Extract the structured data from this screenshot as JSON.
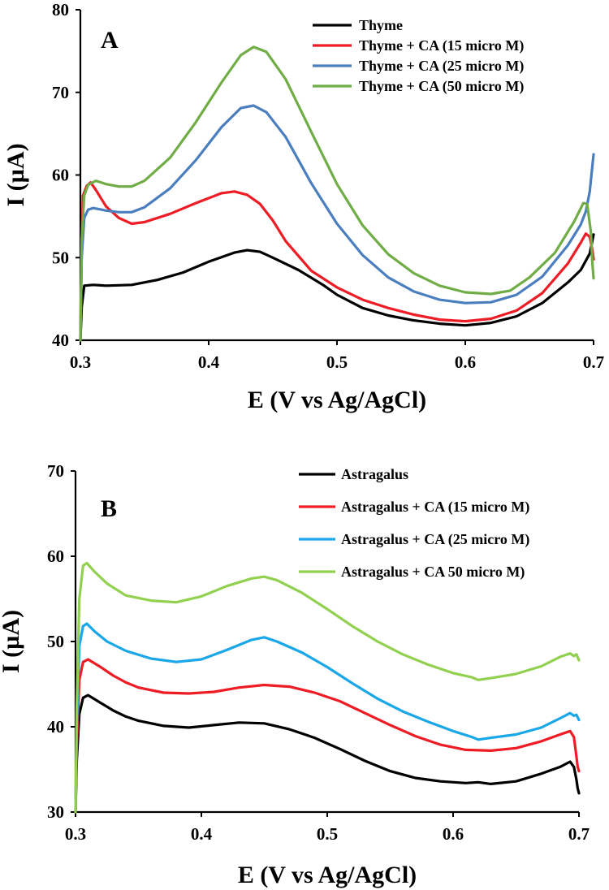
{
  "colors": {
    "black": "#000000",
    "red": "#ee1c25",
    "blueA": "#4a7ebf",
    "greenA": "#71ad47",
    "blueB": "#1aa7e8",
    "greenB": "#92d050"
  },
  "chart_data": [
    {
      "type": "line",
      "panel_label": "A",
      "xlabel": "E (V vs Ag/AgCl)",
      "ylabel": "I (µA)",
      "xlim": [
        0.3,
        0.7
      ],
      "ylim": [
        40,
        80
      ],
      "xticks": [
        "0.3",
        "0.4",
        "0.5",
        "0.6",
        "0.7"
      ],
      "yticks": [
        "40",
        "50",
        "60",
        "70",
        "80"
      ],
      "legend_position": "top-right",
      "series": [
        {
          "name": "Thyme",
          "color": "#000000",
          "points": [
            [
              0.3,
              40.0
            ],
            [
              0.301,
              44.0
            ],
            [
              0.303,
              46.6
            ],
            [
              0.31,
              46.7
            ],
            [
              0.32,
              46.6
            ],
            [
              0.34,
              46.7
            ],
            [
              0.36,
              47.3
            ],
            [
              0.38,
              48.2
            ],
            [
              0.4,
              49.5
            ],
            [
              0.42,
              50.6
            ],
            [
              0.43,
              50.9
            ],
            [
              0.44,
              50.7
            ],
            [
              0.45,
              50.0
            ],
            [
              0.47,
              48.5
            ],
            [
              0.49,
              46.6
            ],
            [
              0.5,
              45.5
            ],
            [
              0.52,
              43.9
            ],
            [
              0.54,
              43.0
            ],
            [
              0.56,
              42.4
            ],
            [
              0.58,
              42.0
            ],
            [
              0.6,
              41.8
            ],
            [
              0.62,
              42.1
            ],
            [
              0.64,
              42.9
            ],
            [
              0.66,
              44.5
            ],
            [
              0.68,
              47.0
            ],
            [
              0.69,
              48.5
            ],
            [
              0.697,
              50.5
            ],
            [
              0.699,
              52.0
            ],
            [
              0.7,
              52.8
            ]
          ]
        },
        {
          "name": "Thyme + CA (15 micro M)",
          "color": "#ee1c25",
          "points": [
            [
              0.3,
              40.0
            ],
            [
              0.301,
              51.0
            ],
            [
              0.302,
              57.5
            ],
            [
              0.305,
              58.7
            ],
            [
              0.308,
              59.1
            ],
            [
              0.312,
              58.2
            ],
            [
              0.32,
              56.2
            ],
            [
              0.33,
              54.8
            ],
            [
              0.34,
              54.1
            ],
            [
              0.35,
              54.3
            ],
            [
              0.37,
              55.3
            ],
            [
              0.39,
              56.6
            ],
            [
              0.41,
              57.8
            ],
            [
              0.42,
              58.0
            ],
            [
              0.43,
              57.6
            ],
            [
              0.44,
              56.5
            ],
            [
              0.45,
              54.5
            ],
            [
              0.46,
              52.0
            ],
            [
              0.48,
              48.4
            ],
            [
              0.5,
              46.4
            ],
            [
              0.52,
              44.9
            ],
            [
              0.54,
              43.9
            ],
            [
              0.56,
              43.1
            ],
            [
              0.58,
              42.5
            ],
            [
              0.6,
              42.3
            ],
            [
              0.62,
              42.6
            ],
            [
              0.64,
              43.6
            ],
            [
              0.66,
              45.7
            ],
            [
              0.68,
              49.3
            ],
            [
              0.69,
              51.8
            ],
            [
              0.694,
              52.9
            ],
            [
              0.697,
              52.5
            ],
            [
              0.699,
              51.0
            ],
            [
              0.7,
              49.8
            ]
          ]
        },
        {
          "name": "Thyme + CA (25 micro M)",
          "color": "#4a7ebf",
          "points": [
            [
              0.3,
              40.0
            ],
            [
              0.301,
              50.0
            ],
            [
              0.303,
              54.8
            ],
            [
              0.306,
              55.8
            ],
            [
              0.31,
              56.0
            ],
            [
              0.32,
              55.7
            ],
            [
              0.33,
              55.5
            ],
            [
              0.34,
              55.5
            ],
            [
              0.35,
              56.1
            ],
            [
              0.37,
              58.4
            ],
            [
              0.39,
              61.8
            ],
            [
              0.41,
              65.8
            ],
            [
              0.425,
              68.1
            ],
            [
              0.435,
              68.4
            ],
            [
              0.445,
              67.6
            ],
            [
              0.46,
              64.6
            ],
            [
              0.48,
              59.0
            ],
            [
              0.5,
              54.1
            ],
            [
              0.52,
              50.3
            ],
            [
              0.54,
              47.6
            ],
            [
              0.56,
              45.9
            ],
            [
              0.58,
              44.9
            ],
            [
              0.6,
              44.5
            ],
            [
              0.62,
              44.6
            ],
            [
              0.64,
              45.5
            ],
            [
              0.66,
              47.7
            ],
            [
              0.68,
              51.5
            ],
            [
              0.69,
              54.0
            ],
            [
              0.694,
              55.6
            ],
            [
              0.697,
              58.0
            ],
            [
              0.699,
              61.0
            ],
            [
              0.7,
              62.5
            ]
          ]
        },
        {
          "name": "Thyme + CA (50 micro M)",
          "color": "#71ad47",
          "points": [
            [
              0.3,
              40.0
            ],
            [
              0.301,
              52.0
            ],
            [
              0.303,
              57.5
            ],
            [
              0.306,
              58.8
            ],
            [
              0.312,
              59.3
            ],
            [
              0.32,
              58.9
            ],
            [
              0.33,
              58.6
            ],
            [
              0.34,
              58.6
            ],
            [
              0.35,
              59.3
            ],
            [
              0.37,
              62.1
            ],
            [
              0.39,
              66.4
            ],
            [
              0.41,
              71.2
            ],
            [
              0.425,
              74.5
            ],
            [
              0.435,
              75.5
            ],
            [
              0.445,
              74.9
            ],
            [
              0.46,
              71.6
            ],
            [
              0.48,
              65.2
            ],
            [
              0.5,
              58.9
            ],
            [
              0.52,
              53.9
            ],
            [
              0.54,
              50.4
            ],
            [
              0.56,
              48.1
            ],
            [
              0.58,
              46.6
            ],
            [
              0.6,
              45.8
            ],
            [
              0.62,
              45.6
            ],
            [
              0.635,
              46.0
            ],
            [
              0.65,
              47.6
            ],
            [
              0.67,
              50.6
            ],
            [
              0.685,
              54.4
            ],
            [
              0.692,
              56.6
            ],
            [
              0.695,
              56.5
            ],
            [
              0.698,
              53.0
            ],
            [
              0.699,
              49.5
            ],
            [
              0.7,
              47.5
            ]
          ]
        }
      ]
    },
    {
      "type": "line",
      "panel_label": "B",
      "xlabel": "E (V vs Ag/AgCl)",
      "ylabel": "I (µA)",
      "xlim": [
        0.3,
        0.7
      ],
      "ylim": [
        30,
        70
      ],
      "xticks": [
        "0.3",
        "0.4",
        "0.5",
        "0.6",
        "0.7"
      ],
      "yticks": [
        "30",
        "40",
        "50",
        "60",
        "70"
      ],
      "legend_position": "top-right",
      "series": [
        {
          "name": "Astragalus",
          "color": "#000000",
          "points": [
            [
              0.3,
              30.0
            ],
            [
              0.301,
              36.0
            ],
            [
              0.303,
              41.5
            ],
            [
              0.306,
              43.4
            ],
            [
              0.31,
              43.7
            ],
            [
              0.32,
              42.8
            ],
            [
              0.33,
              41.9
            ],
            [
              0.34,
              41.2
            ],
            [
              0.35,
              40.7
            ],
            [
              0.37,
              40.1
            ],
            [
              0.39,
              39.9
            ],
            [
              0.41,
              40.2
            ],
            [
              0.43,
              40.5
            ],
            [
              0.45,
              40.4
            ],
            [
              0.47,
              39.7
            ],
            [
              0.49,
              38.7
            ],
            [
              0.51,
              37.4
            ],
            [
              0.53,
              36.0
            ],
            [
              0.55,
              34.8
            ],
            [
              0.57,
              34.0
            ],
            [
              0.59,
              33.6
            ],
            [
              0.61,
              33.4
            ],
            [
              0.62,
              33.5
            ],
            [
              0.63,
              33.3
            ],
            [
              0.65,
              33.6
            ],
            [
              0.67,
              34.5
            ],
            [
              0.685,
              35.3
            ],
            [
              0.693,
              35.9
            ],
            [
              0.696,
              35.3
            ],
            [
              0.698,
              33.8
            ],
            [
              0.699,
              32.8
            ],
            [
              0.7,
              32.2
            ]
          ]
        },
        {
          "name": "Astragalus + CA (15 micro M)",
          "color": "#ee1c25",
          "points": [
            [
              0.3,
              30.0
            ],
            [
              0.301,
              38.0
            ],
            [
              0.303,
              45.5
            ],
            [
              0.306,
              47.6
            ],
            [
              0.31,
              47.9
            ],
            [
              0.32,
              47.0
            ],
            [
              0.33,
              46.0
            ],
            [
              0.34,
              45.2
            ],
            [
              0.35,
              44.6
            ],
            [
              0.37,
              44.0
            ],
            [
              0.39,
              43.9
            ],
            [
              0.41,
              44.1
            ],
            [
              0.43,
              44.6
            ],
            [
              0.45,
              44.9
            ],
            [
              0.47,
              44.7
            ],
            [
              0.49,
              44.0
            ],
            [
              0.51,
              43.0
            ],
            [
              0.53,
              41.6
            ],
            [
              0.55,
              40.2
            ],
            [
              0.57,
              38.9
            ],
            [
              0.59,
              37.9
            ],
            [
              0.61,
              37.3
            ],
            [
              0.63,
              37.2
            ],
            [
              0.65,
              37.5
            ],
            [
              0.67,
              38.3
            ],
            [
              0.685,
              39.1
            ],
            [
              0.693,
              39.5
            ],
            [
              0.696,
              38.8
            ],
            [
              0.698,
              36.5
            ],
            [
              0.699,
              35.3
            ],
            [
              0.7,
              34.8
            ]
          ]
        },
        {
          "name": "Astragalus + CA (25 micro M)",
          "color": "#1aa7e8",
          "points": [
            [
              0.3,
              30.0
            ],
            [
              0.301,
              40.0
            ],
            [
              0.303,
              49.5
            ],
            [
              0.306,
              51.8
            ],
            [
              0.309,
              52.1
            ],
            [
              0.315,
              51.2
            ],
            [
              0.325,
              50.0
            ],
            [
              0.34,
              48.9
            ],
            [
              0.36,
              48.0
            ],
            [
              0.38,
              47.6
            ],
            [
              0.4,
              47.9
            ],
            [
              0.42,
              49.0
            ],
            [
              0.44,
              50.2
            ],
            [
              0.45,
              50.5
            ],
            [
              0.46,
              50.0
            ],
            [
              0.48,
              48.7
            ],
            [
              0.5,
              47.0
            ],
            [
              0.52,
              45.1
            ],
            [
              0.54,
              43.3
            ],
            [
              0.56,
              41.8
            ],
            [
              0.58,
              40.6
            ],
            [
              0.6,
              39.5
            ],
            [
              0.615,
              38.8
            ],
            [
              0.62,
              38.5
            ],
            [
              0.63,
              38.7
            ],
            [
              0.65,
              39.1
            ],
            [
              0.67,
              39.9
            ],
            [
              0.685,
              41.0
            ],
            [
              0.693,
              41.6
            ],
            [
              0.696,
              41.3
            ],
            [
              0.698,
              41.4
            ],
            [
              0.7,
              40.8
            ]
          ]
        },
        {
          "name": "Astragalus + CA 50 micro M)",
          "color": "#92d050",
          "points": [
            [
              0.3,
              30.0
            ],
            [
              0.301,
              42.0
            ],
            [
              0.303,
              55.0
            ],
            [
              0.306,
              58.9
            ],
            [
              0.309,
              59.2
            ],
            [
              0.315,
              58.2
            ],
            [
              0.325,
              56.8
            ],
            [
              0.34,
              55.4
            ],
            [
              0.36,
              54.8
            ],
            [
              0.38,
              54.6
            ],
            [
              0.4,
              55.3
            ],
            [
              0.42,
              56.5
            ],
            [
              0.44,
              57.4
            ],
            [
              0.45,
              57.6
            ],
            [
              0.46,
              57.2
            ],
            [
              0.48,
              55.7
            ],
            [
              0.5,
              53.8
            ],
            [
              0.52,
              51.8
            ],
            [
              0.54,
              50.0
            ],
            [
              0.56,
              48.5
            ],
            [
              0.58,
              47.3
            ],
            [
              0.6,
              46.3
            ],
            [
              0.615,
              45.8
            ],
            [
              0.62,
              45.5
            ],
            [
              0.63,
              45.7
            ],
            [
              0.65,
              46.2
            ],
            [
              0.67,
              47.1
            ],
            [
              0.685,
              48.2
            ],
            [
              0.693,
              48.6
            ],
            [
              0.696,
              48.3
            ],
            [
              0.698,
              48.5
            ],
            [
              0.7,
              47.8
            ]
          ]
        }
      ]
    }
  ]
}
